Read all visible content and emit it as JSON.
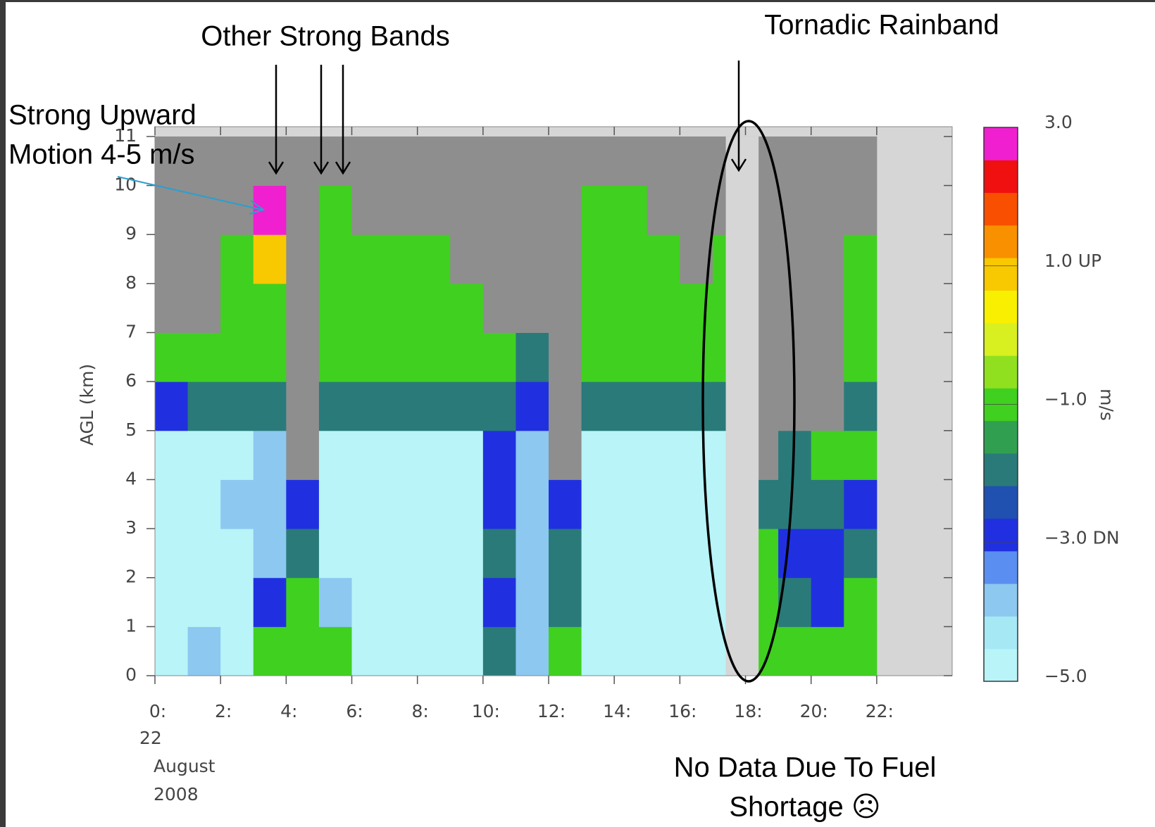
{
  "chart_data": {
    "type": "heatmap",
    "annotations": {
      "other_bands": "Other Strong Bands",
      "tornadic": "Tornadic Rainband",
      "upward": [
        "Strong Upward",
        "Motion 4-5 m/s"
      ],
      "no_data": [
        "No Data Due To Fuel",
        "Shortage ☹"
      ]
    },
    "y_label": "AGL (km)",
    "colorbar_label": "m/s",
    "x_date": [
      "22",
      "August",
      "2008"
    ],
    "xlim": [
      0,
      24.3
    ],
    "ylim": [
      0,
      11.2
    ],
    "xticks": [
      {
        "value": 0,
        "label": "0:"
      },
      {
        "value": 2,
        "label": "2:"
      },
      {
        "value": 4,
        "label": "4:"
      },
      {
        "value": 6,
        "label": "6:"
      },
      {
        "value": 8,
        "label": "8:"
      },
      {
        "value": 10,
        "label": "10:"
      },
      {
        "value": 12,
        "label": "12:"
      },
      {
        "value": 14,
        "label": "14:"
      },
      {
        "value": 16,
        "label": "16:"
      },
      {
        "value": 18,
        "label": "18:"
      },
      {
        "value": 20,
        "label": "20:"
      },
      {
        "value": 22,
        "label": "22:"
      }
    ],
    "yticks": [
      0,
      1,
      2,
      3,
      4,
      5,
      6,
      7,
      8,
      9,
      10,
      11
    ],
    "x_bins": [
      0,
      1,
      2,
      3,
      4,
      5,
      6,
      7,
      8,
      9,
      10,
      11,
      12,
      13,
      14,
      15,
      16,
      17,
      18,
      19,
      20,
      21,
      22
    ],
    "y_bins": [
      0,
      1,
      2,
      3,
      4,
      5,
      6,
      7,
      8,
      9,
      10,
      11
    ],
    "z": [
      [
        -5,
        -5,
        -5,
        -5,
        -5,
        -3,
        -1,
        null,
        null,
        null,
        null
      ],
      [
        -4,
        -5,
        -5,
        -5,
        -5,
        -2,
        -1,
        null,
        null,
        null,
        null
      ],
      [
        -5,
        -5,
        -5,
        -4,
        -5,
        -2,
        -1,
        -1,
        -1,
        null,
        null
      ],
      [
        -1,
        -3,
        -4,
        -4,
        -4,
        -2,
        -1,
        -1,
        1,
        3,
        null
      ],
      [
        -1,
        -1,
        -2,
        -3,
        null,
        null,
        null,
        null,
        null,
        null,
        null
      ],
      [
        -1,
        -4,
        -5,
        -5,
        -5,
        -2,
        -1,
        -1,
        -1,
        -1,
        null
      ],
      [
        -5,
        -5,
        -5,
        -5,
        -5,
        -2,
        -1,
        -1,
        -1,
        null,
        null
      ],
      [
        -5,
        -5,
        -5,
        -5,
        -5,
        -2,
        -1,
        -1,
        -1,
        null,
        null
      ],
      [
        -5,
        -5,
        -5,
        -5,
        -5,
        -2,
        -1,
        -1,
        -1,
        null,
        null
      ],
      [
        -5,
        -5,
        -5,
        -5,
        -5,
        -2,
        -1,
        -1,
        null,
        null,
        null
      ],
      [
        -2,
        -3,
        -2,
        -3,
        -3,
        -2,
        -1,
        null,
        null,
        null,
        null
      ],
      [
        -4,
        -4,
        -4,
        -4,
        -4,
        -3,
        -2,
        null,
        null,
        null,
        null
      ],
      [
        -1,
        -2,
        -2,
        -3,
        null,
        null,
        null,
        null,
        null,
        null,
        null
      ],
      [
        -5,
        -5,
        -5,
        -5,
        -5,
        -2,
        -1,
        -1,
        -1,
        -1,
        null
      ],
      [
        -5,
        -5,
        -5,
        -5,
        -5,
        -2,
        -1,
        -1,
        -1,
        -1,
        null
      ],
      [
        -5,
        -5,
        -5,
        -5,
        -5,
        -2,
        -1,
        -1,
        -1,
        null,
        null
      ],
      [
        -5,
        -5,
        -5,
        -5,
        -5,
        -2,
        -1,
        -1,
        null,
        null,
        null
      ],
      [
        -5,
        -5,
        -5,
        -5,
        -5,
        -2,
        -1,
        -1,
        -1,
        null,
        null
      ],
      [
        -1,
        -1,
        -1,
        -2,
        null,
        null,
        null,
        null,
        null,
        null,
        null
      ],
      [
        -1,
        -2,
        -3,
        -2,
        -2,
        null,
        null,
        null,
        null,
        null,
        null
      ],
      [
        -1,
        -3,
        -3,
        -2,
        -1,
        null,
        null,
        null,
        null,
        null,
        null
      ],
      [
        -1,
        -1,
        -2,
        -3,
        -1,
        -2,
        -1,
        -1,
        -1,
        null,
        null
      ]
    ],
    "outages": [
      [
        17.4,
        18.4
      ],
      [
        22.2,
        24.3
      ]
    ],
    "clim": [
      -5,
      3
    ],
    "cticks": [
      {
        "value": 3,
        "label": "3.0"
      },
      {
        "value": 1,
        "label": "1.0 UP"
      },
      {
        "value": -1,
        "label": "−1.0"
      },
      {
        "value": -3,
        "label": "−3.0 DN"
      },
      {
        "value": -5,
        "label": "−5.0"
      }
    ],
    "colorscale": [
      "#b8f4f8",
      "#a6e8f4",
      "#8cc8f0",
      "#5a8ef0",
      "#2030e0",
      "#2050b0",
      "#2a7a7a",
      "#30a050",
      "#40d020",
      "#90e020",
      "#d8f020",
      "#f8f000",
      "#f8c800",
      "#f89000",
      "#f85000",
      "#f01010",
      "#f020d0"
    ],
    "null_color": "#8e8e8e",
    "frame_color": "#d6d6d6"
  }
}
